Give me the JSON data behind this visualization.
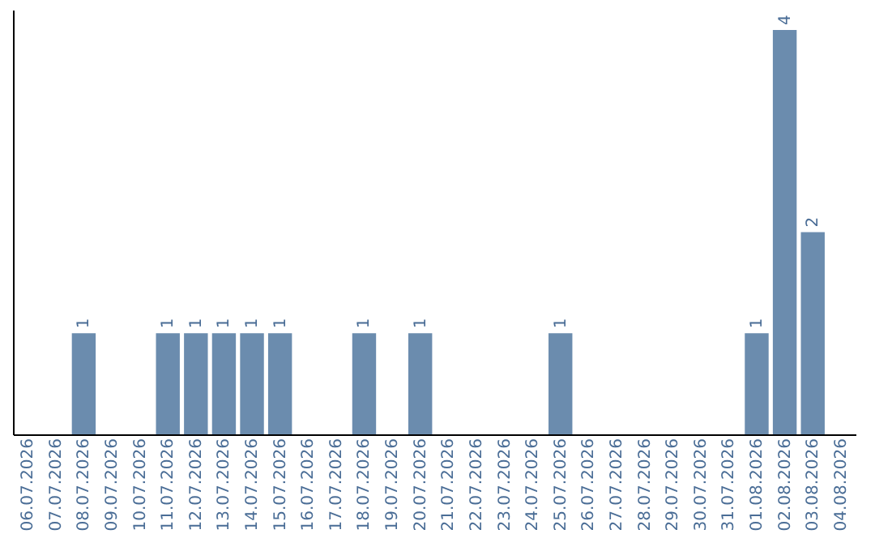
{
  "chart_data": {
    "type": "bar",
    "categories": [
      "06.07.2026",
      "07.07.2026",
      "08.07.2026",
      "09.07.2026",
      "10.07.2026",
      "11.07.2026",
      "12.07.2026",
      "13.07.2026",
      "14.07.2026",
      "15.07.2026",
      "16.07.2026",
      "17.07.2026",
      "18.07.2026",
      "19.07.2026",
      "20.07.2026",
      "21.07.2026",
      "22.07.2026",
      "23.07.2026",
      "24.07.2026",
      "25.07.2026",
      "26.07.2026",
      "27.07.2026",
      "28.07.2026",
      "29.07.2026",
      "30.07.2026",
      "31.07.2026",
      "01.08.2026",
      "02.08.2026",
      "03.08.2026",
      "04.08.2026"
    ],
    "values": [
      0,
      0,
      1,
      0,
      0,
      1,
      1,
      1,
      1,
      1,
      0,
      0,
      1,
      0,
      1,
      0,
      0,
      0,
      0,
      1,
      0,
      0,
      0,
      0,
      0,
      0,
      1,
      4,
      2,
      0
    ],
    "value_labels": [
      null,
      null,
      "1",
      null,
      null,
      "1",
      "1",
      "1",
      "1",
      "1",
      null,
      null,
      "1",
      null,
      "1",
      null,
      null,
      null,
      null,
      "1",
      null,
      null,
      null,
      null,
      null,
      null,
      "1",
      "4",
      "2",
      null
    ],
    "color": "#6b8cae",
    "grid": false
  }
}
